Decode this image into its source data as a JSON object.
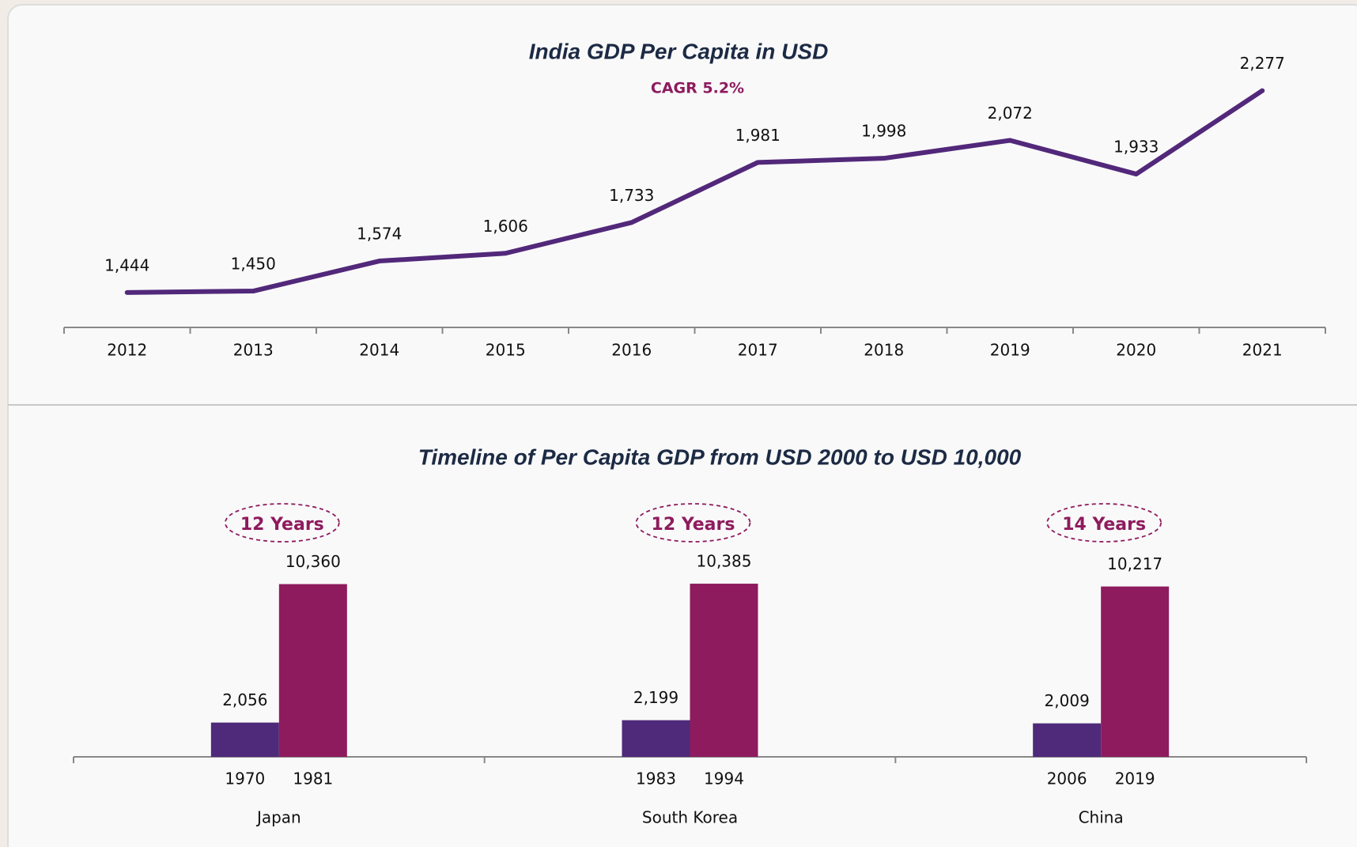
{
  "chart_data": [
    {
      "type": "line",
      "title": "India GDP Per Capita in USD",
      "subtitle": "CAGR 5.2%",
      "categories": [
        "2012",
        "2013",
        "2014",
        "2015",
        "2016",
        "2017",
        "2018",
        "2019",
        "2020",
        "2021"
      ],
      "values": [
        1444,
        1450,
        1574,
        1606,
        1733,
        1981,
        1998,
        2072,
        1933,
        2277
      ],
      "value_labels": [
        "1,444",
        "1,450",
        "1,574",
        "1,606",
        "1,733",
        "1,981",
        "1,998",
        "2,072",
        "1,933",
        "2,277"
      ],
      "color": "#52287a",
      "ylim": [
        1300,
        2400
      ]
    },
    {
      "type": "bar",
      "title": "Timeline of Per Capita GDP from USD 2000 to USD 10,000",
      "categories": [
        "Japan",
        "South Korea",
        "China"
      ],
      "annotations": [
        "12 Years",
        "12 Years",
        "14 Years"
      ],
      "series": [
        {
          "color": "#4f2a7a",
          "values": [
            2056,
            2199,
            2009
          ],
          "value_labels": [
            "2,056",
            "2,199",
            "2,009"
          ],
          "labels": [
            "1970",
            "1983",
            "2006"
          ]
        },
        {
          "color": "#8e1b5e",
          "values": [
            10360,
            10385,
            10217
          ],
          "value_labels": [
            "10,360",
            "10,385",
            "10,217"
          ],
          "labels": [
            "1981",
            "1994",
            "2019"
          ]
        }
      ],
      "ylim": [
        0,
        12000
      ]
    }
  ]
}
